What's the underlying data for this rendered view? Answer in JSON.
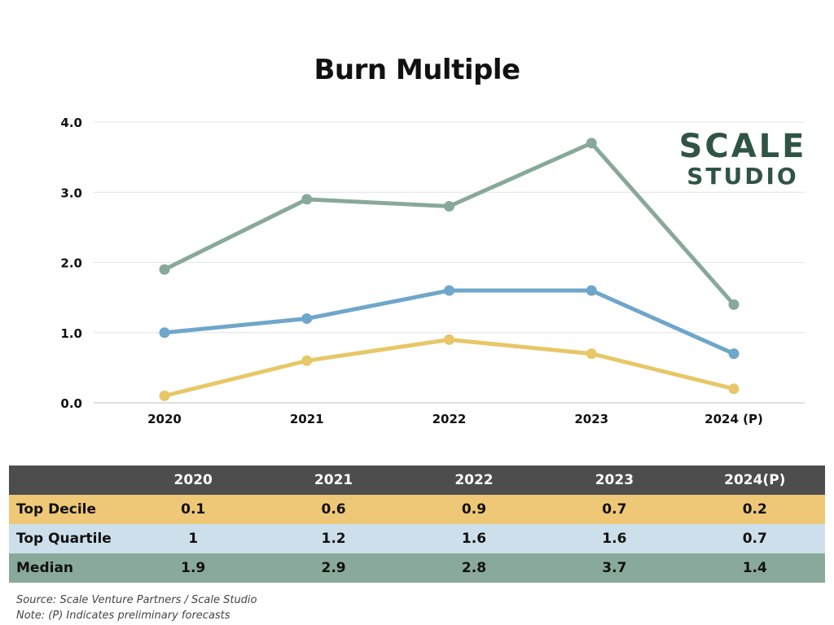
{
  "chart_data": {
    "type": "line",
    "title": "Burn Multiple",
    "categories": [
      "2020",
      "2021",
      "2022",
      "2023",
      "2024 (P)"
    ],
    "ylim": [
      0,
      4
    ],
    "yticks": [
      "0.0",
      "1.0",
      "2.0",
      "3.0",
      "4.0"
    ],
    "grid": true,
    "series": [
      {
        "name": "Top Decile",
        "values": [
          0.1,
          0.6,
          0.9,
          0.7,
          0.2
        ],
        "color": "#e7c767",
        "rowColor": "#efc877"
      },
      {
        "name": "Top Quartile",
        "values": [
          1.0,
          1.2,
          1.6,
          1.6,
          0.7
        ],
        "color": "#6fa6cb",
        "rowColor": "#cddfeb"
      },
      {
        "name": "Median",
        "values": [
          1.9,
          2.9,
          2.8,
          3.7,
          1.4
        ],
        "color": "#88a99a",
        "rowColor": "#89aa9a"
      }
    ]
  },
  "logo": {
    "line1": "SCALE",
    "line2": "STUDIO",
    "color": "#2f5446"
  },
  "table": {
    "headers": [
      "",
      "2020",
      "2021",
      "2022",
      "2023",
      "2024(P)"
    ],
    "rows": [
      {
        "label": "Top Decile",
        "values": [
          "0.1",
          "0.6",
          "0.9",
          "0.7",
          "0.2"
        ]
      },
      {
        "label": "Top Quartile",
        "values": [
          "1",
          "1.2",
          "1.6",
          "1.6",
          "0.7"
        ]
      },
      {
        "label": "Median",
        "values": [
          "1.9",
          "2.9",
          "2.8",
          "3.7",
          "1.4"
        ]
      }
    ]
  },
  "notes": {
    "source": "Source: Scale Venture Partners / Scale Studio",
    "note": "Note: (P) Indicates preliminary forecasts"
  }
}
